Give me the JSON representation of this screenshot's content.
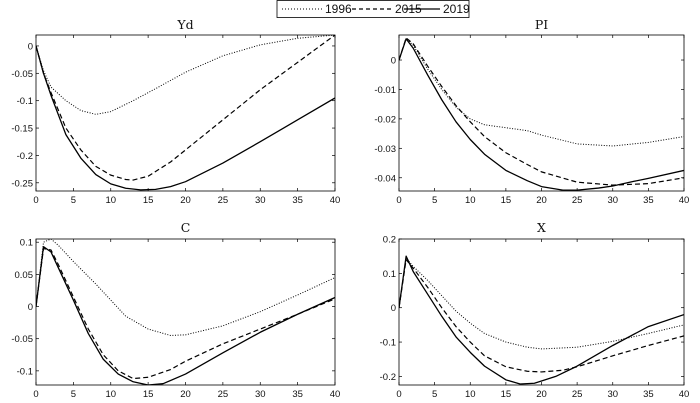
{
  "legend": {
    "items": [
      {
        "name": "1996",
        "style": "dotted"
      },
      {
        "name": "2015",
        "style": "dashed"
      },
      {
        "name": "2019",
        "style": "solid"
      }
    ]
  },
  "chart_data": [
    {
      "type": "line",
      "title": "Yd",
      "xlim": [
        0,
        40
      ],
      "ylim": [
        -0.265,
        0.02
      ],
      "xticks": [
        0,
        5,
        10,
        15,
        20,
        25,
        30,
        35,
        40
      ],
      "xtick_labels": [
        "0",
        "5",
        "10",
        "15",
        "20",
        "25",
        "30",
        "35",
        "40"
      ],
      "yticks": [
        0,
        -0.05,
        -0.1,
        -0.15,
        -0.2,
        -0.25
      ],
      "ytick_labels": [
        "0",
        "-0.05",
        "-0.1",
        "-0.15",
        "-0.2",
        "-0.25"
      ],
      "series": [
        {
          "name": "1996",
          "style": "dotted",
          "points": [
            [
              0,
              0
            ],
            [
              1,
              -0.045
            ],
            [
              2,
              -0.075
            ],
            [
              4,
              -0.1
            ],
            [
              6,
              -0.118
            ],
            [
              8,
              -0.125
            ],
            [
              10,
              -0.12
            ],
            [
              13,
              -0.1
            ],
            [
              16,
              -0.078
            ],
            [
              20,
              -0.048
            ],
            [
              25,
              -0.018
            ],
            [
              30,
              0.002
            ],
            [
              35,
              0.014
            ],
            [
              40,
              0.02
            ]
          ]
        },
        {
          "name": "2015",
          "style": "dashed",
          "points": [
            [
              0,
              0
            ],
            [
              1,
              -0.05
            ],
            [
              2,
              -0.085
            ],
            [
              4,
              -0.15
            ],
            [
              6,
              -0.19
            ],
            [
              8,
              -0.22
            ],
            [
              10,
              -0.236
            ],
            [
              12,
              -0.244
            ],
            [
              13,
              -0.245
            ],
            [
              15,
              -0.238
            ],
            [
              18,
              -0.212
            ],
            [
              20,
              -0.19
            ],
            [
              25,
              -0.135
            ],
            [
              30,
              -0.08
            ],
            [
              35,
              -0.03
            ],
            [
              40,
              0.02
            ]
          ]
        },
        {
          "name": "2019",
          "style": "solid",
          "points": [
            [
              0,
              0
            ],
            [
              1,
              -0.05
            ],
            [
              2,
              -0.09
            ],
            [
              4,
              -0.162
            ],
            [
              6,
              -0.205
            ],
            [
              8,
              -0.235
            ],
            [
              10,
              -0.252
            ],
            [
              12,
              -0.26
            ],
            [
              14,
              -0.263
            ],
            [
              16,
              -0.262
            ],
            [
              18,
              -0.257
            ],
            [
              20,
              -0.248
            ],
            [
              25,
              -0.214
            ],
            [
              30,
              -0.175
            ],
            [
              35,
              -0.135
            ],
            [
              40,
              -0.095
            ]
          ]
        }
      ]
    },
    {
      "type": "line",
      "title": "PI",
      "xlim": [
        0,
        40
      ],
      "ylim": [
        -0.0445,
        0.0085
      ],
      "xticks": [
        0,
        5,
        10,
        15,
        20,
        25,
        30,
        35,
        40
      ],
      "xtick_labels": [
        "0",
        "5",
        "10",
        "15",
        "20",
        "25",
        "30",
        "35",
        "40"
      ],
      "yticks": [
        0,
        -0.01,
        -0.02,
        -0.03,
        -0.04
      ],
      "ytick_labels": [
        "0",
        "-0.01",
        "-0.02",
        "-0.03",
        "-0.04"
      ],
      "series": [
        {
          "name": "1996",
          "style": "dotted",
          "points": [
            [
              0,
              0
            ],
            [
              1,
              0.0072
            ],
            [
              2,
              0.005
            ],
            [
              4,
              -0.003
            ],
            [
              6,
              -0.01
            ],
            [
              8,
              -0.016
            ],
            [
              10,
              -0.02
            ],
            [
              12,
              -0.022
            ],
            [
              15,
              -0.023
            ],
            [
              18,
              -0.024
            ],
            [
              20,
              -0.0255
            ],
            [
              25,
              -0.0285
            ],
            [
              30,
              -0.0292
            ],
            [
              35,
              -0.028
            ],
            [
              40,
              -0.026
            ]
          ]
        },
        {
          "name": "2015",
          "style": "dashed",
          "points": [
            [
              0,
              0
            ],
            [
              1,
              0.0075
            ],
            [
              2,
              0.0055
            ],
            [
              4,
              -0.002
            ],
            [
              6,
              -0.009
            ],
            [
              8,
              -0.0155
            ],
            [
              10,
              -0.021
            ],
            [
              12,
              -0.026
            ],
            [
              15,
              -0.0315
            ],
            [
              18,
              -0.0355
            ],
            [
              20,
              -0.038
            ],
            [
              25,
              -0.0415
            ],
            [
              30,
              -0.0425
            ],
            [
              35,
              -0.042
            ],
            [
              40,
              -0.04
            ]
          ]
        },
        {
          "name": "2019",
          "style": "solid",
          "points": [
            [
              0,
              0
            ],
            [
              1,
              0.0072
            ],
            [
              2,
              0.004
            ],
            [
              4,
              -0.005
            ],
            [
              6,
              -0.0135
            ],
            [
              8,
              -0.021
            ],
            [
              10,
              -0.027
            ],
            [
              12,
              -0.032
            ],
            [
              15,
              -0.0375
            ],
            [
              18,
              -0.041
            ],
            [
              20,
              -0.043
            ],
            [
              23,
              -0.0442
            ],
            [
              25,
              -0.0442
            ],
            [
              28,
              -0.0435
            ],
            [
              30,
              -0.0428
            ],
            [
              33,
              -0.0412
            ],
            [
              35,
              -0.0402
            ],
            [
              40,
              -0.0375
            ]
          ]
        }
      ]
    },
    {
      "type": "line",
      "title": "C",
      "xlim": [
        0,
        40
      ],
      "ylim": [
        -0.122,
        0.105
      ],
      "xticks": [
        0,
        5,
        10,
        15,
        20,
        25,
        30,
        35,
        40
      ],
      "xtick_labels": [
        "0",
        "5",
        "10",
        "15",
        "20",
        "25",
        "30",
        "35",
        "40"
      ],
      "yticks": [
        0.1,
        0.05,
        0,
        -0.05,
        -0.1
      ],
      "ytick_labels": [
        "0.1",
        "0.05",
        "0",
        "-0.05",
        "-0.1"
      ],
      "series": [
        {
          "name": "1996",
          "style": "dotted",
          "points": [
            [
              0,
              0
            ],
            [
              1,
              0.1
            ],
            [
              2,
              0.105
            ],
            [
              3,
              0.095
            ],
            [
              5,
              0.07
            ],
            [
              8,
              0.035
            ],
            [
              10,
              0.01
            ],
            [
              12,
              -0.015
            ],
            [
              15,
              -0.035
            ],
            [
              18,
              -0.045
            ],
            [
              20,
              -0.044
            ],
            [
              25,
              -0.03
            ],
            [
              30,
              -0.008
            ],
            [
              35,
              0.018
            ],
            [
              40,
              0.045
            ]
          ]
        },
        {
          "name": "2015",
          "style": "dashed",
          "points": [
            [
              0,
              0
            ],
            [
              1,
              0.09
            ],
            [
              2,
              0.088
            ],
            [
              3,
              0.065
            ],
            [
              5,
              0.015
            ],
            [
              7,
              -0.035
            ],
            [
              9,
              -0.075
            ],
            [
              11,
              -0.1
            ],
            [
              13,
              -0.112
            ],
            [
              15,
              -0.11
            ],
            [
              18,
              -0.098
            ],
            [
              20,
              -0.085
            ],
            [
              25,
              -0.058
            ],
            [
              30,
              -0.035
            ],
            [
              35,
              -0.012
            ],
            [
              40,
              0.012
            ]
          ]
        },
        {
          "name": "2019",
          "style": "solid",
          "points": [
            [
              0,
              0
            ],
            [
              1,
              0.093
            ],
            [
              2,
              0.085
            ],
            [
              3,
              0.06
            ],
            [
              5,
              0.01
            ],
            [
              7,
              -0.042
            ],
            [
              9,
              -0.082
            ],
            [
              11,
              -0.105
            ],
            [
              13,
              -0.117
            ],
            [
              15,
              -0.122
            ],
            [
              17,
              -0.12
            ],
            [
              20,
              -0.105
            ],
            [
              25,
              -0.072
            ],
            [
              30,
              -0.04
            ],
            [
              35,
              -0.012
            ],
            [
              40,
              0.014
            ]
          ]
        }
      ]
    },
    {
      "type": "line",
      "title": "X",
      "xlim": [
        0,
        40
      ],
      "ylim": [
        -0.225,
        0.2
      ],
      "xticks": [
        0,
        5,
        10,
        15,
        20,
        25,
        30,
        35,
        40
      ],
      "xtick_labels": [
        "0",
        "5",
        "10",
        "15",
        "20",
        "25",
        "30",
        "35",
        "40"
      ],
      "yticks": [
        0.2,
        0.1,
        0,
        -0.1,
        -0.2
      ],
      "ytick_labels": [
        "0.2",
        "0.1",
        "0",
        "-0.1",
        "-0.2"
      ],
      "series": [
        {
          "name": "1996",
          "style": "dotted",
          "points": [
            [
              0,
              0
            ],
            [
              1,
              0.145
            ],
            [
              2,
              0.12
            ],
            [
              4,
              0.08
            ],
            [
              6,
              0.035
            ],
            [
              8,
              -0.01
            ],
            [
              10,
              -0.045
            ],
            [
              12,
              -0.075
            ],
            [
              15,
              -0.1
            ],
            [
              18,
              -0.115
            ],
            [
              20,
              -0.12
            ],
            [
              25,
              -0.115
            ],
            [
              30,
              -0.098
            ],
            [
              35,
              -0.075
            ],
            [
              40,
              -0.05
            ]
          ]
        },
        {
          "name": "2015",
          "style": "dashed",
          "points": [
            [
              0,
              0
            ],
            [
              1,
              0.14
            ],
            [
              2,
              0.115
            ],
            [
              4,
              0.06
            ],
            [
              6,
              0.0
            ],
            [
              8,
              -0.055
            ],
            [
              10,
              -0.1
            ],
            [
              12,
              -0.14
            ],
            [
              15,
              -0.172
            ],
            [
              18,
              -0.185
            ],
            [
              20,
              -0.187
            ],
            [
              23,
              -0.182
            ],
            [
              25,
              -0.172
            ],
            [
              30,
              -0.14
            ],
            [
              35,
              -0.11
            ],
            [
              40,
              -0.082
            ]
          ]
        },
        {
          "name": "2019",
          "style": "solid",
          "points": [
            [
              0,
              0
            ],
            [
              1,
              0.15
            ],
            [
              2,
              0.105
            ],
            [
              4,
              0.04
            ],
            [
              6,
              -0.025
            ],
            [
              8,
              -0.085
            ],
            [
              10,
              -0.13
            ],
            [
              12,
              -0.17
            ],
            [
              15,
              -0.21
            ],
            [
              17,
              -0.222
            ],
            [
              19,
              -0.22
            ],
            [
              22,
              -0.2
            ],
            [
              25,
              -0.17
            ],
            [
              30,
              -0.11
            ],
            [
              35,
              -0.055
            ],
            [
              40,
              -0.02
            ]
          ]
        }
      ]
    }
  ]
}
